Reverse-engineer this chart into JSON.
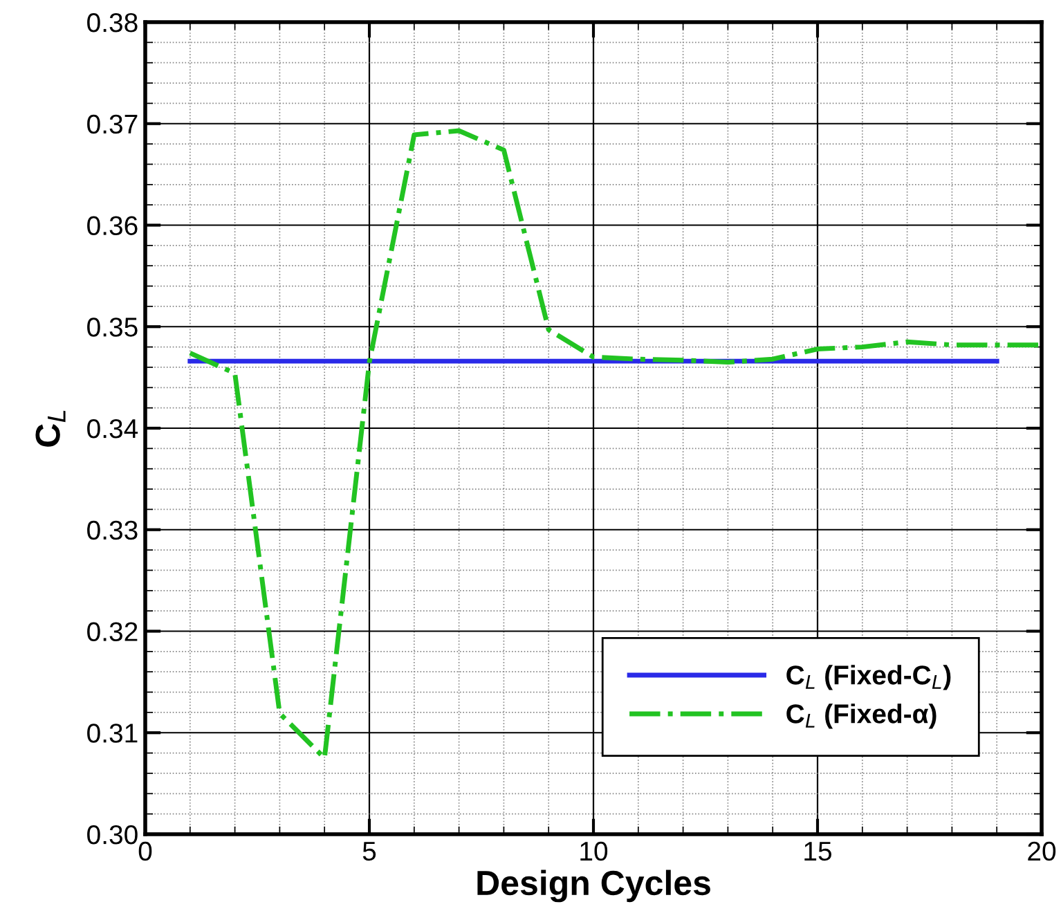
{
  "chart_data": {
    "type": "line",
    "xlabel": "Design Cycles",
    "ylabel": "C$_{L}$",
    "xlim": [
      0,
      20
    ],
    "xticks": [
      0,
      5,
      10,
      15,
      20
    ],
    "ylim": [
      0.3,
      0.38
    ],
    "yticks": [
      {
        "value": 0.3,
        "label": "0.30"
      },
      {
        "value": 0.31,
        "label": "0.31"
      },
      {
        "value": 0.32,
        "label": "0.32"
      },
      {
        "value": 0.33,
        "label": "0.33"
      },
      {
        "value": 0.34,
        "label": "0.34"
      },
      {
        "value": 0.35,
        "label": "0.35"
      },
      {
        "value": 0.36,
        "label": "0.36"
      },
      {
        "value": 0.37,
        "label": "0.37"
      },
      {
        "value": 0.38,
        "label": "0.38"
      }
    ],
    "grid": true,
    "legend": "bottom right",
    "marker": "none",
    "series": [
      {
        "name": "C$_{L}$ (Fixed-C$_{L}$)",
        "color": "#2a2ae8",
        "line_style": "solid",
        "x": [
          1,
          19
        ],
        "values": [
          0.3466,
          0.3466
        ]
      },
      {
        "name": "C$_{L}$ (Fixed-α)",
        "color": "#22c322",
        "line_style": "dashdot",
        "x": [
          1,
          2,
          3,
          4,
          5,
          6,
          7,
          8,
          9,
          10,
          11,
          12,
          13,
          14,
          15,
          16,
          17,
          18,
          19,
          20
        ],
        "values": [
          0.3474,
          0.3454,
          0.3119,
          0.3075,
          0.3465,
          0.3689,
          0.3693,
          0.3674,
          0.3497,
          0.347,
          0.3468,
          0.3467,
          0.3465,
          0.3468,
          0.3478,
          0.348,
          0.3485,
          0.3482,
          0.3482,
          0.3482
        ]
      }
    ]
  }
}
